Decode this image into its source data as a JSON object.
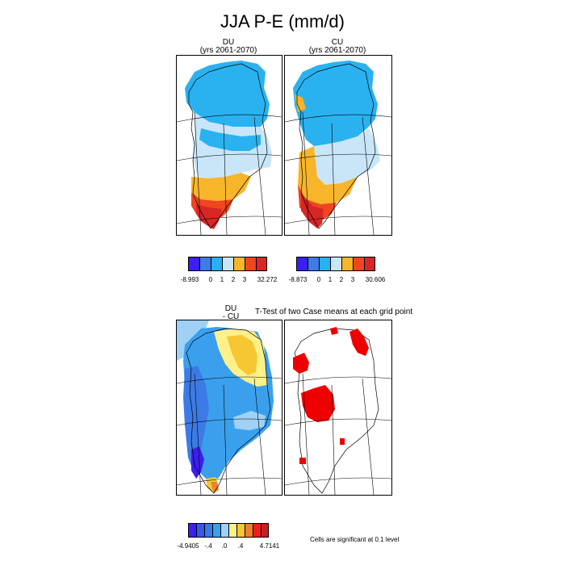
{
  "title": "JJA P-E (mm/d)",
  "panels": {
    "du": {
      "line1": "DU",
      "line2": "(yrs 2061-2070)"
    },
    "cu": {
      "line1": "CU",
      "line2": "(yrs 2061-2070)"
    },
    "diff": {
      "line1": "DU",
      "line2": "- CU"
    },
    "ttest": {
      "title": "T-Test of two Case means at each grid point"
    }
  },
  "colorbars": {
    "du": {
      "labels": [
        "-8.993",
        "0",
        "1",
        "2",
        "3",
        "32.272"
      ],
      "colors": [
        "#3b1ef0",
        "#3d7be6",
        "#28b0f0",
        "#c8e6f8",
        "#f7b52a",
        "#f0461e",
        "#d72626"
      ]
    },
    "cu": {
      "labels": [
        "-8.873",
        "0",
        "1",
        "2",
        "3",
        "30.606"
      ],
      "colors": [
        "#3b1ef0",
        "#3d7be6",
        "#28b0f0",
        "#c8e6f8",
        "#f7b52a",
        "#f0461e",
        "#d72626"
      ]
    },
    "diff": {
      "labels": [
        "-4.9405",
        "-.4",
        ".0",
        ".4",
        "4.7141"
      ],
      "colors": [
        "#3b1ef0",
        "#3858e8",
        "#3c7be6",
        "#3aa0ee",
        "#9fd1f5",
        "#fff08a",
        "#f6c733",
        "#f08030",
        "#ef1e1e",
        "#c81e1e"
      ]
    }
  },
  "note": "Cells are significant at 0.1 level"
}
